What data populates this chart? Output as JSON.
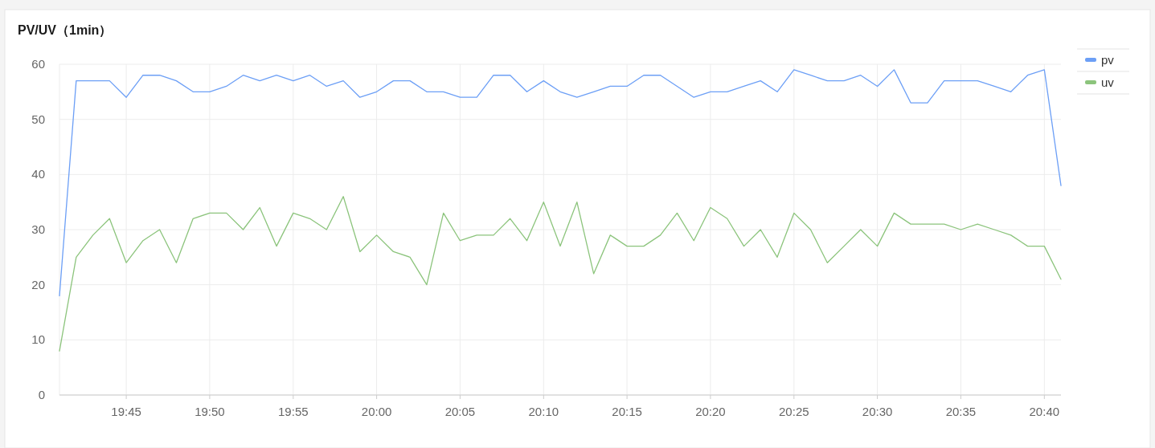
{
  "chart_data": {
    "type": "line",
    "title": "PV/UV（1min）",
    "x": [
      19.6833,
      19.7,
      19.7167,
      19.7333,
      19.75,
      19.7667,
      19.7833,
      19.8,
      19.8167,
      19.8333,
      19.85,
      19.8667,
      19.8833,
      19.9,
      19.9167,
      19.9333,
      19.95,
      19.9667,
      19.9833,
      20,
      20.0167,
      20.0333,
      20.05,
      20.0667,
      20.0833,
      20.1,
      20.1167,
      20.1333,
      20.15,
      20.1667,
      20.1833,
      20.2,
      20.2167,
      20.2333,
      20.25,
      20.2667,
      20.2833,
      20.3,
      20.3167,
      20.3333,
      20.35,
      20.3667,
      20.3833,
      20.4,
      20.4167,
      20.4333,
      20.45,
      20.4667,
      20.4833,
      20.5,
      20.5167,
      20.5333,
      20.55,
      20.5667,
      20.5833,
      20.6,
      20.6167,
      20.6333,
      20.65,
      20.6667,
      20.6833
    ],
    "series": [
      {
        "name": "pv",
        "color": "#6c9ff6",
        "values": [
          18,
          57,
          57,
          57,
          54,
          58,
          58,
          57,
          55,
          55,
          56,
          58,
          57,
          58,
          57,
          58,
          56,
          57,
          54,
          55,
          57,
          57,
          55,
          55,
          54,
          54,
          58,
          58,
          55,
          57,
          55,
          54,
          55,
          56,
          56,
          58,
          58,
          56,
          54,
          55,
          55,
          56,
          57,
          55,
          59,
          58,
          57,
          57,
          58,
          56,
          59,
          53,
          53,
          57,
          57,
          57,
          56,
          55,
          58,
          59,
          38
        ]
      },
      {
        "name": "uv",
        "color": "#8cc47c",
        "values": [
          8,
          25,
          29,
          32,
          24,
          28,
          30,
          24,
          32,
          33,
          33,
          30,
          34,
          27,
          33,
          32,
          30,
          36,
          26,
          29,
          26,
          25,
          20,
          33,
          28,
          29,
          29,
          32,
          28,
          35,
          27,
          35,
          22,
          29,
          27,
          27,
          29,
          33,
          28,
          34,
          32,
          27,
          30,
          25,
          33,
          30,
          24,
          27,
          30,
          27,
          33,
          31,
          31,
          31,
          30,
          31,
          30,
          29,
          27,
          27,
          21
        ]
      }
    ],
    "xlim": [
      19.6833,
      20.6833
    ],
    "xticks": [
      {
        "value": 19.75,
        "label": "19:45"
      },
      {
        "value": 19.8333,
        "label": "19:50"
      },
      {
        "value": 19.9167,
        "label": "19:55"
      },
      {
        "value": 20,
        "label": "20:00"
      },
      {
        "value": 20.0833,
        "label": "20:05"
      },
      {
        "value": 20.1667,
        "label": "20:10"
      },
      {
        "value": 20.25,
        "label": "20:15"
      },
      {
        "value": 20.3333,
        "label": "20:20"
      },
      {
        "value": 20.4167,
        "label": "20:25"
      },
      {
        "value": 20.5,
        "label": "20:30"
      },
      {
        "value": 20.5833,
        "label": "20:35"
      },
      {
        "value": 20.6667,
        "label": "20:40"
      }
    ],
    "ylim": [
      0,
      60
    ],
    "yticks": [
      0,
      10,
      20,
      30,
      40,
      50,
      60
    ],
    "grid": true,
    "legend": "right",
    "marker": "none",
    "line_style": "solid"
  }
}
